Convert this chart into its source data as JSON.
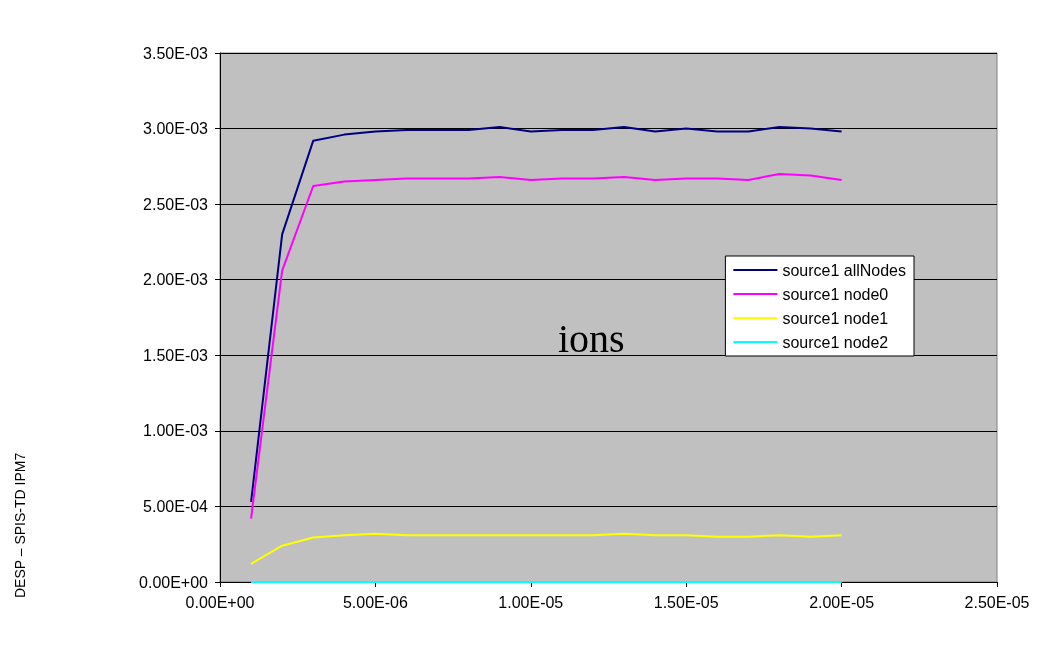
{
  "chart_data": {
    "type": "line",
    "x": [
      1e-06,
      2e-06,
      3e-06,
      4e-06,
      5e-06,
      6e-06,
      7e-06,
      8e-06,
      9e-06,
      1e-05,
      1.1e-05,
      1.2e-05,
      1.3e-05,
      1.4e-05,
      1.5e-05,
      1.6e-05,
      1.7e-05,
      1.8e-05,
      1.9e-05,
      2e-05
    ],
    "series": [
      {
        "name": "source1 allNodes",
        "color": "#000080",
        "values": [
          0.00053,
          0.0023,
          0.00292,
          0.00296,
          0.00298,
          0.00299,
          0.00299,
          0.00299,
          0.00301,
          0.00298,
          0.00299,
          0.00299,
          0.00301,
          0.00298,
          0.003,
          0.00298,
          0.00298,
          0.00301,
          0.003,
          0.00298
        ]
      },
      {
        "name": "source1 node0",
        "color": "#ff00ff",
        "values": [
          0.00042,
          0.00206,
          0.00262,
          0.00265,
          0.00266,
          0.00267,
          0.00267,
          0.00267,
          0.00268,
          0.00266,
          0.00267,
          0.00267,
          0.00268,
          0.00266,
          0.00267,
          0.00267,
          0.00266,
          0.0027,
          0.00269,
          0.00266
        ]
      },
      {
        "name": "source1 node1",
        "color": "#ffff00",
        "values": [
          0.00012,
          0.00024,
          0.000295,
          0.00031,
          0.00032,
          0.00031,
          0.00031,
          0.00031,
          0.00031,
          0.00031,
          0.00031,
          0.00031,
          0.00032,
          0.00031,
          0.00031,
          0.0003,
          0.0003,
          0.00031,
          0.0003,
          0.00031
        ]
      },
      {
        "name": "source1 node2",
        "color": "#00ffff",
        "values": [
          0,
          0,
          0,
          0,
          0,
          0,
          0,
          0,
          0,
          0,
          0,
          0,
          0,
          0,
          0,
          0,
          0,
          0,
          0,
          0
        ]
      }
    ],
    "xlim": [
      0,
      2.5e-05
    ],
    "xticks": [
      {
        "value": 0,
        "label": "0.00E+00"
      },
      {
        "value": 5e-06,
        "label": "5.00E-06"
      },
      {
        "value": 1e-05,
        "label": "1.00E-05"
      },
      {
        "value": 1.5e-05,
        "label": "1.50E-05"
      },
      {
        "value": 2e-05,
        "label": "2.00E-05"
      },
      {
        "value": 2.5e-05,
        "label": "2.50E-05"
      }
    ],
    "ylim": [
      0,
      0.0035
    ],
    "yticks": [
      {
        "value": 0,
        "label": "0.00E+00"
      },
      {
        "value": 0.0005,
        "label": "5.00E-04"
      },
      {
        "value": 0.001,
        "label": "1.00E-03"
      },
      {
        "value": 0.0015,
        "label": "1.50E-03"
      },
      {
        "value": 0.002,
        "label": "2.00E-03"
      },
      {
        "value": 0.0025,
        "label": "2.50E-03"
      },
      {
        "value": 0.003,
        "label": "3.00E-03"
      },
      {
        "value": 0.0035,
        "label": "3.50E-03"
      }
    ],
    "grid": "y",
    "legend": "right",
    "marker": "none",
    "line_style": "solid",
    "annotations": [
      "ions",
      "DESP – SPIS-TD IPM7"
    ]
  }
}
